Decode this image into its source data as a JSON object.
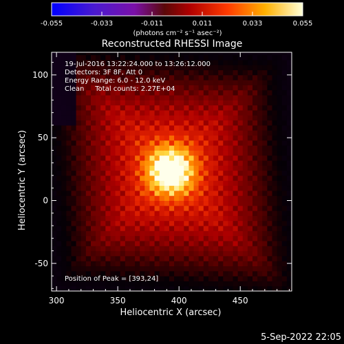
{
  "colorbar": {
    "ticks": [
      "-0.055",
      "-0.033",
      "-0.011",
      "0.011",
      "0.033",
      "0.055"
    ],
    "unit_label": "(photons cm⁻² s⁻¹ asec⁻²)",
    "min": -0.055,
    "max": 0.055
  },
  "chart_data": {
    "type": "heatmap",
    "title": "Reconstructed RHESSI Image",
    "xlabel": "Heliocentric X (arcsec)",
    "ylabel": "Heliocentric Y (arcsec)",
    "xlim": [
      296,
      492
    ],
    "ylim": [
      -72,
      118
    ],
    "xticks": [
      300,
      350,
      400,
      450
    ],
    "yticks": [
      100,
      50,
      0,
      -50
    ],
    "annotations": [
      "19-Jul-2016 13:22:24.000 to 13:26:12.000",
      "Detectors: 3F 8F, Att 0",
      "Energy Range: 6.0 - 12.0 keV",
      "Clean     Total counts: 2.27E+04",
      "Position of Peak = [393,24]"
    ],
    "peak": [
      393,
      24
    ],
    "colormap": "black-purple-red-yellow-white"
  },
  "footer": {
    "date": "5-Sep-2022 22:05"
  }
}
